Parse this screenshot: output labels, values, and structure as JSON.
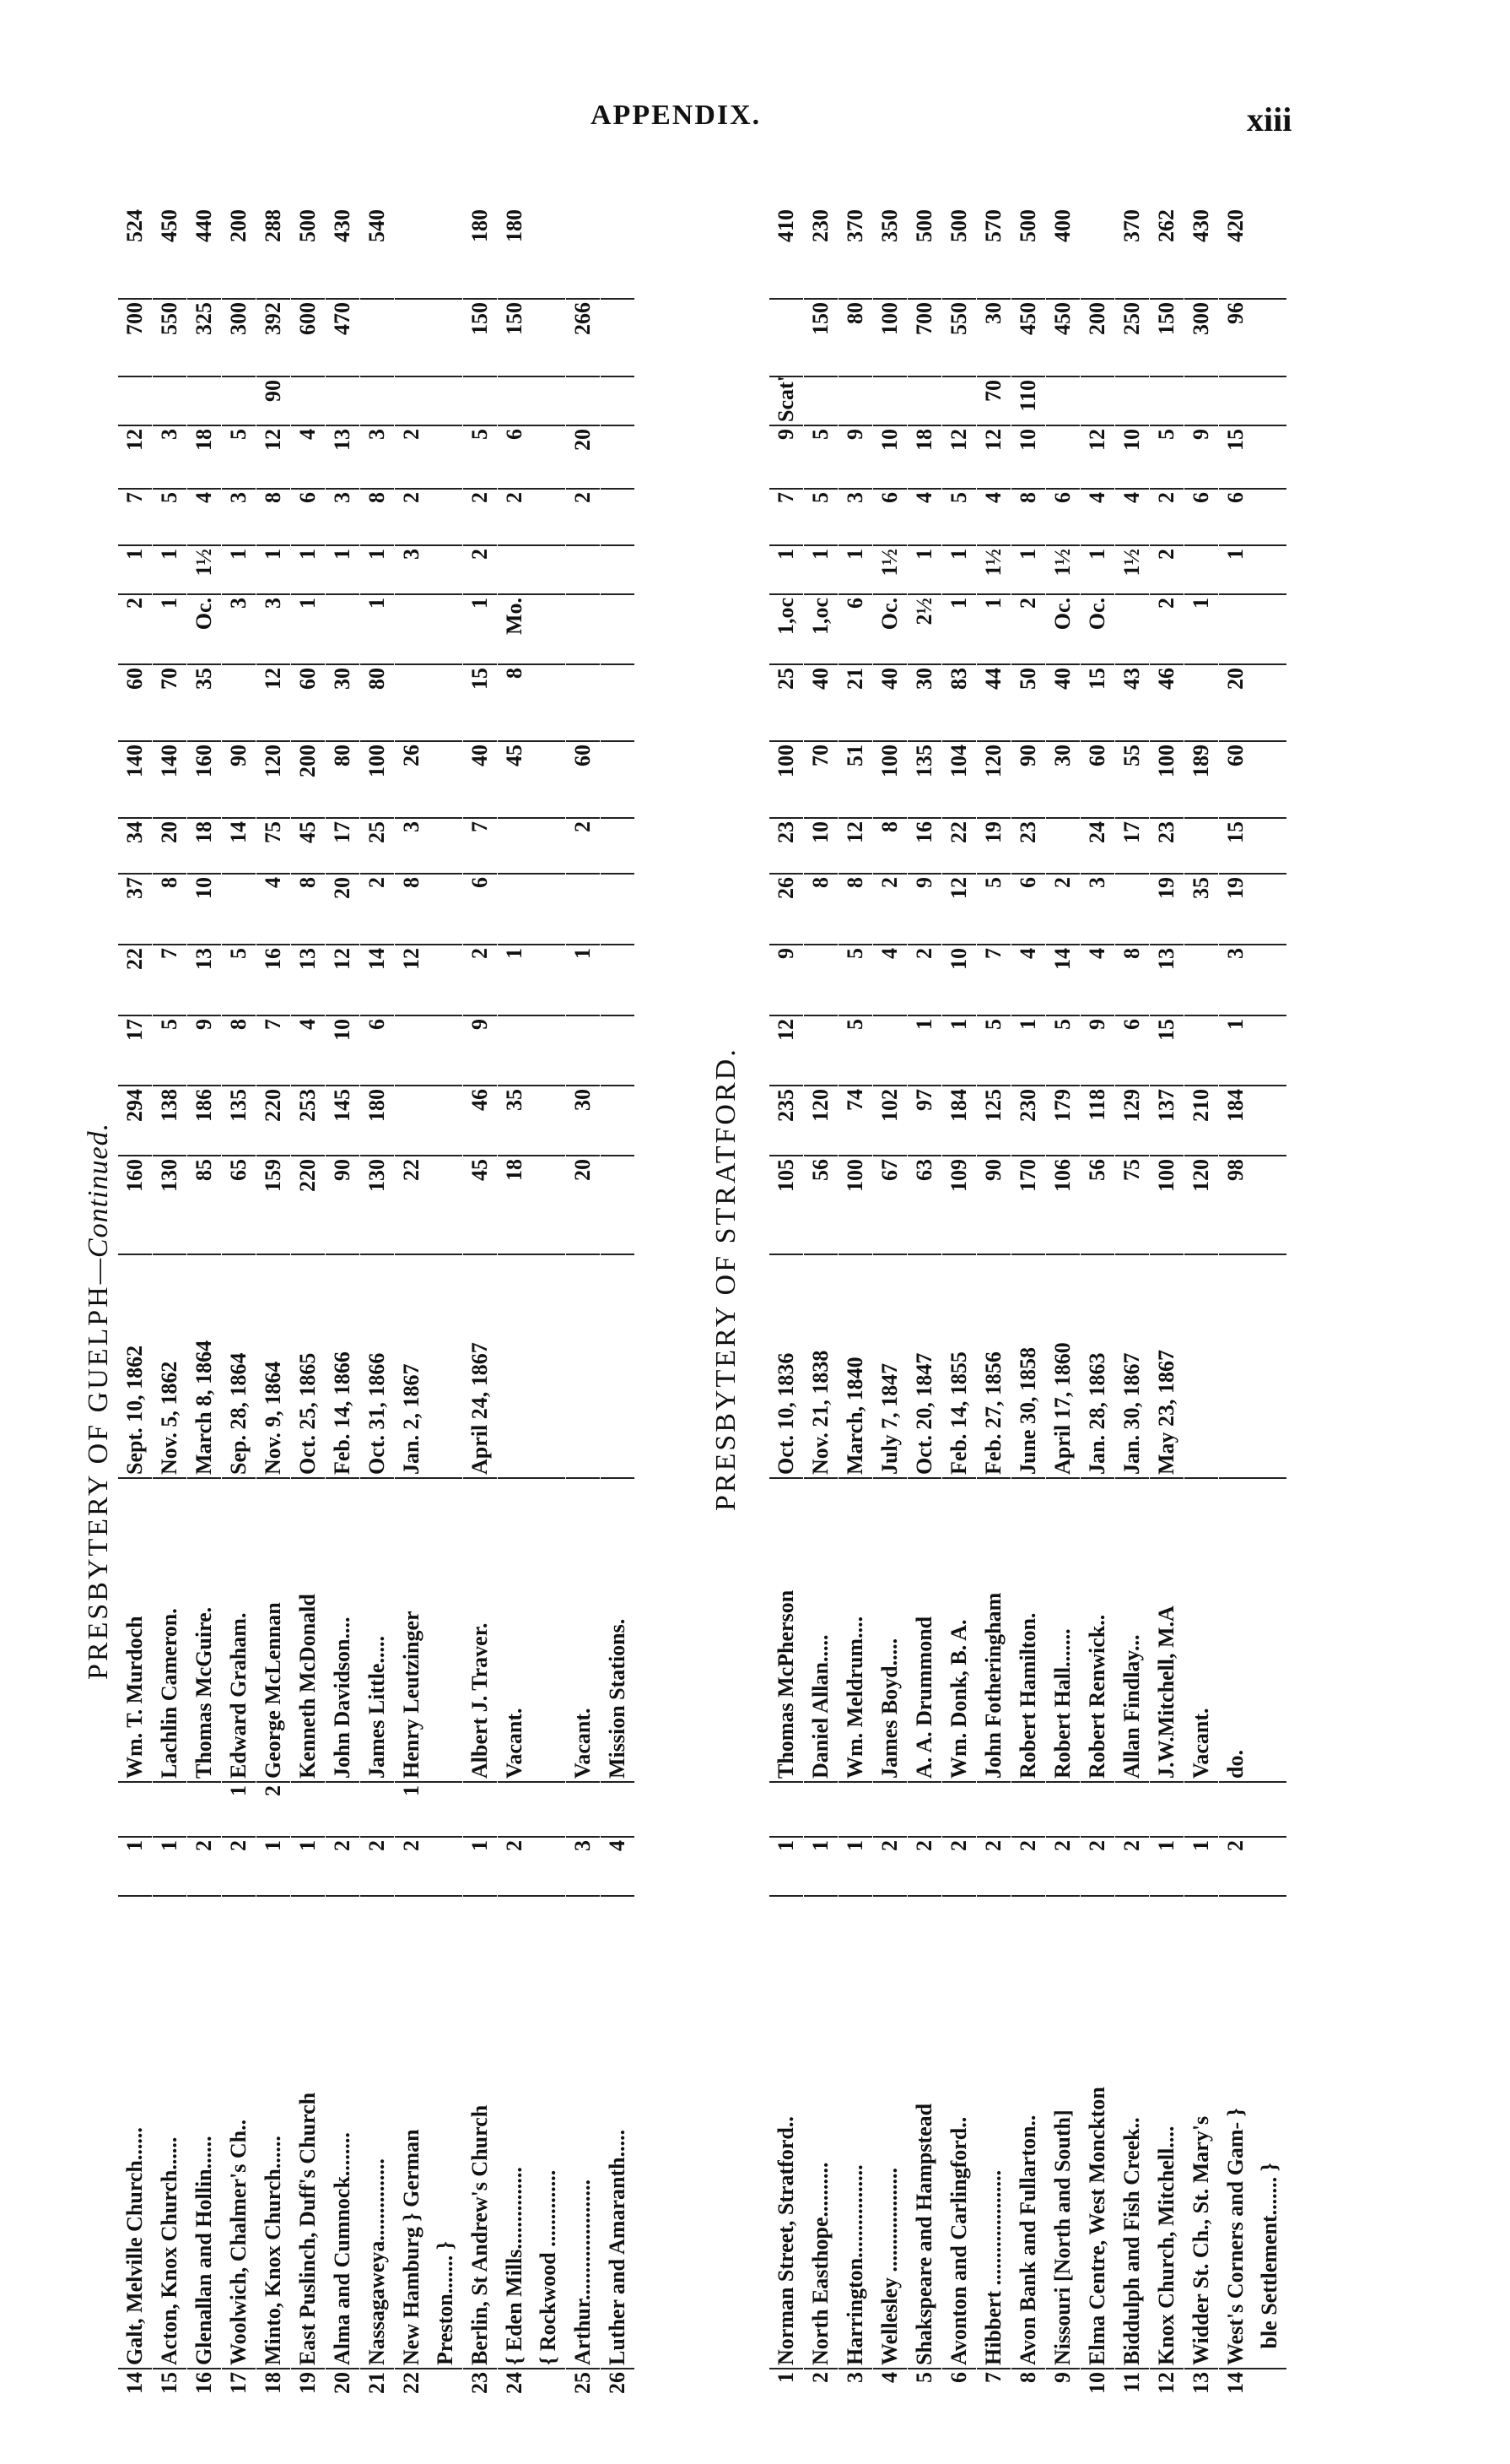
{
  "header": {
    "title": "APPENDIX.",
    "page_number": "xiii"
  },
  "sections": [
    {
      "title": "PRESBYTERY OF GUELPH",
      "title_suffix": "—Continued.",
      "rows": [
        [
          "14",
          "Galt, Melville Church......",
          "1",
          "",
          "Wm. T. Murdoch",
          "Sept. 10, 1862",
          "160",
          "294",
          "17",
          "22",
          "37",
          "34",
          "140",
          "60",
          "2",
          "1",
          "7",
          "12",
          "",
          "700",
          "524"
        ],
        [
          "15",
          "Acton, Knox Church......",
          "1",
          "",
          "Lachlin Cameron.",
          "Nov. 5, 1862",
          "130",
          "138",
          "5",
          "7",
          "8",
          "20",
          "140",
          "70",
          "1",
          "1",
          "5",
          "3",
          "",
          "550",
          "450"
        ],
        [
          "16",
          "Glenallan and Hollin......",
          "2",
          "",
          "Thomas McGuire.",
          "March 8, 1864",
          "85",
          "186",
          "9",
          "13",
          "10",
          "18",
          "160",
          "35",
          "Oc.",
          "1½",
          "4",
          "18",
          "",
          "325",
          "440"
        ],
        [
          "17",
          "Woolwich, Chalmer's Ch..",
          "2",
          "1",
          "Edward Graham.",
          "Sep. 28, 1864",
          "65",
          "135",
          "8",
          "5",
          "",
          "14",
          "90",
          "",
          "3",
          "1",
          "3",
          "5",
          "",
          "300",
          "200"
        ],
        [
          "18",
          "Minto, Knox Church......",
          "1",
          "2",
          "George McLennan",
          "Nov. 9, 1864",
          "159",
          "220",
          "7",
          "16",
          "4",
          "75",
          "120",
          "12",
          "3",
          "1",
          "8",
          "12",
          "90",
          "392",
          "288"
        ],
        [
          "19",
          "East Puslinch, Duff's Church",
          "1",
          "",
          "Kenneth McDonald",
          "Oct. 25, 1865",
          "220",
          "253",
          "4",
          "13",
          "8",
          "45",
          "200",
          "60",
          "1",
          "1",
          "6",
          "4",
          "",
          "600",
          "500"
        ],
        [
          "20",
          "Alma and Cumnock........",
          "2",
          "",
          "John Davidson....",
          "Feb. 14, 1866",
          "90",
          "145",
          "10",
          "12",
          "20",
          "17",
          "80",
          "30",
          "",
          "1",
          "3",
          "13",
          "",
          "470",
          "430"
        ],
        [
          "21",
          "Nassagaweya...............",
          "2",
          "",
          "James Little.....",
          "Oct. 31, 1866",
          "130",
          "180",
          "6",
          "14",
          "2",
          "25",
          "100",
          "80",
          "1",
          "1",
          "8",
          "3",
          "",
          "",
          "540"
        ],
        [
          "22",
          "New Hamburg } German\nPreston....... }",
          "2",
          "1",
          "Henry Leutzinger",
          "Jan. 2, 1867",
          "22",
          "",
          "",
          "12",
          "8",
          "3",
          "26",
          "",
          "",
          "3",
          "2",
          "2",
          "",
          "",
          ""
        ],
        [
          "23",
          "Berlin, St Andrew's Church",
          "1",
          "",
          "Albert J. Traver.",
          "April 24, 1867",
          "45",
          "46",
          "9",
          "2",
          "6",
          "7",
          "40",
          "15",
          "1",
          "2",
          "2",
          "5",
          "",
          "150",
          "180"
        ],
        [
          "24",
          "{ Eden Mills...............\n{ Rockwood ..............",
          "2",
          "",
          "Vacant.",
          "",
          "18",
          "35",
          "",
          "1",
          "",
          "",
          "45",
          "8",
          "Mo.",
          "",
          "2",
          "6",
          "",
          "150",
          "180"
        ],
        [
          "25",
          "Arthur......................",
          "3",
          "",
          "Vacant.",
          "",
          "20",
          "30",
          "",
          "1",
          "",
          "2",
          "60",
          "",
          "",
          "",
          "2",
          "20",
          "",
          "266",
          ""
        ],
        [
          "26",
          "Luther and Amaranth.....",
          "4",
          "",
          "Mission Stations.",
          "",
          "",
          "",
          "",
          "",
          "",
          "",
          "",
          "",
          "",
          "",
          "",
          "",
          "",
          "",
          ""
        ]
      ]
    },
    {
      "title": "PRESBYTERY OF STRATFORD.",
      "title_suffix": "",
      "rows": [
        [
          "1",
          "Norman Street, Stratford..",
          "1",
          "",
          "Thomas McPherson",
          "Oct. 10, 1836",
          "105",
          "235",
          "12",
          "9",
          "26",
          "23",
          "100",
          "25",
          "1,oc",
          "1",
          "7",
          "9",
          "Scat'ter'd",
          "",
          "410"
        ],
        [
          "2",
          "North Easthope..........",
          "1",
          "",
          "Daniel Allan.....",
          "Nov. 21, 1838",
          "56",
          "120",
          "",
          "",
          "8",
          "10",
          "70",
          "40",
          "1,oc",
          "1",
          "5",
          "5",
          "",
          "150",
          "230"
        ],
        [
          "3",
          "Harrington.................",
          "1",
          "",
          "Wm. Meldrum....",
          "March, 1840",
          "100",
          "74",
          "5",
          "5",
          "8",
          "12",
          "51",
          "21",
          "6",
          "1",
          "3",
          "9",
          "",
          "80",
          "370"
        ],
        [
          "4",
          "Wellesley ...................",
          "2",
          "",
          "James Boyd.....",
          "July 7, 1847",
          "67",
          "102",
          "",
          "4",
          "2",
          "8",
          "100",
          "40",
          "Oc.",
          "1½",
          "6",
          "10",
          "",
          "100",
          "350"
        ],
        [
          "5",
          "Shakspeare and Hampstead",
          "2",
          "",
          "A. A. Drummond",
          "Oct. 20, 1847",
          "63",
          "97",
          "1",
          "2",
          "9",
          "16",
          "135",
          "30",
          "2½",
          "1",
          "4",
          "18",
          "",
          "700",
          "500"
        ],
        [
          "6",
          "Avonton and Carlingford..",
          "2",
          "",
          "Wm. Donk, B. A.",
          "Feb. 14, 1855",
          "109",
          "184",
          "1",
          "10",
          "12",
          "22",
          "104",
          "83",
          "1",
          "1",
          "5",
          "12",
          "",
          "550",
          "500"
        ],
        [
          "7",
          "Hibbert .....................",
          "2",
          "",
          "John Fotheringham",
          "Feb. 27, 1856",
          "90",
          "125",
          "5",
          "7",
          "5",
          "19",
          "120",
          "44",
          "1",
          "1½",
          "4",
          "12",
          "70",
          "30",
          "570"
        ],
        [
          "8",
          "Avon Bank and Fullarton..",
          "2",
          "",
          "Robert Hamilton.",
          "June 30, 1858",
          "170",
          "230",
          "1",
          "4",
          "6",
          "23",
          "90",
          "50",
          "2",
          "1",
          "8",
          "10",
          "110",
          "450",
          "500"
        ],
        [
          "9",
          "Nissouri [North and South]",
          "2",
          "",
          "Robert Hall.......",
          "April 17, 1860",
          "106",
          "179",
          "5",
          "14",
          "2",
          "",
          "30",
          "40",
          "Oc.",
          "1½",
          "6",
          "",
          "",
          "450",
          "400"
        ],
        [
          "10",
          "Elma Centre, West Monckton",
          "2",
          "",
          "Robert Renwick..",
          "Jan. 28, 1863",
          "56",
          "118",
          "9",
          "4",
          "3",
          "24",
          "60",
          "15",
          "Oc.",
          "1",
          "4",
          "12",
          "",
          "200",
          ""
        ],
        [
          "11",
          "Biddulph and Fish Creek..",
          "2",
          "",
          "Allan Findlay...",
          "Jan. 30, 1867",
          "75",
          "129",
          "6",
          "8",
          "",
          "17",
          "55",
          "43",
          "",
          "1½",
          "4",
          "10",
          "",
          "250",
          "370"
        ],
        [
          "12",
          "Knox Church, Mitchell....",
          "1",
          "",
          "J.W.Mitchell, M.A",
          "May 23, 1867",
          "100",
          "137",
          "15",
          "13",
          "19",
          "23",
          "100",
          "46",
          "2",
          "2",
          "2",
          "5",
          "",
          "150",
          "262"
        ],
        [
          "13",
          "Widder St. Ch., St. Mary's",
          "1",
          "",
          "Vacant.",
          "",
          "120",
          "210",
          "",
          "",
          "35",
          "",
          "189",
          "",
          "1",
          "",
          "6",
          "9",
          "",
          "300",
          "430"
        ],
        [
          "14",
          "West's Corners and Gam- }\n   ble Settlement....... }",
          "2",
          "",
          "do.",
          "",
          "98",
          "184",
          "1",
          "3",
          "19",
          "15",
          "60",
          "20",
          "",
          "1",
          "6",
          "15",
          "",
          "96",
          "420"
        ]
      ]
    }
  ]
}
